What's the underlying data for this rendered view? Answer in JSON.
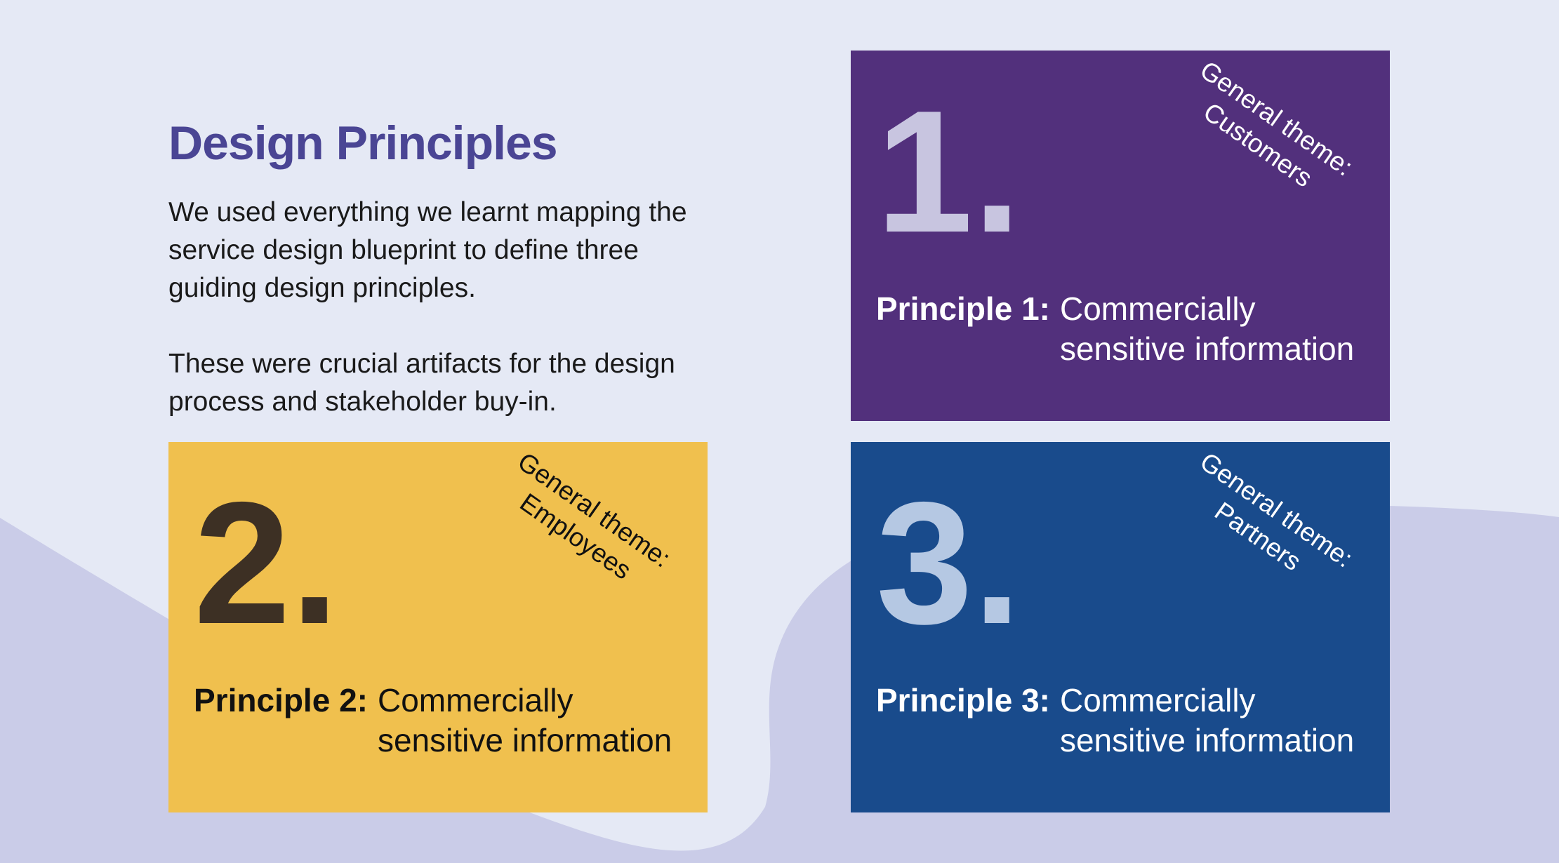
{
  "header": {
    "title": "Design Principles"
  },
  "intro": {
    "paragraph_1": "We used everything we learnt mapping the service design blueprint to define three guiding design principles.",
    "paragraph_2": "These were crucial artifacts for the design process and stakeholder buy-in."
  },
  "colors": {
    "background": "#e5e9f5",
    "background_shape": "#cacce8",
    "title": "#4a4594",
    "card_1": "#52307c",
    "card_2": "#f0c04e",
    "card_3": "#194b8c"
  },
  "cards": [
    {
      "number": "1.",
      "theme": "General theme: Customers",
      "label": "Principle 1:",
      "description": "Commercially sensitive information"
    },
    {
      "number": "2.",
      "theme": "General theme: Employees",
      "label": "Principle 2:",
      "description": "Commercially sensitive information"
    },
    {
      "number": "3.",
      "theme": "General theme: Partners",
      "label": "Principle 3:",
      "description": "Commercially sensitive information"
    }
  ]
}
